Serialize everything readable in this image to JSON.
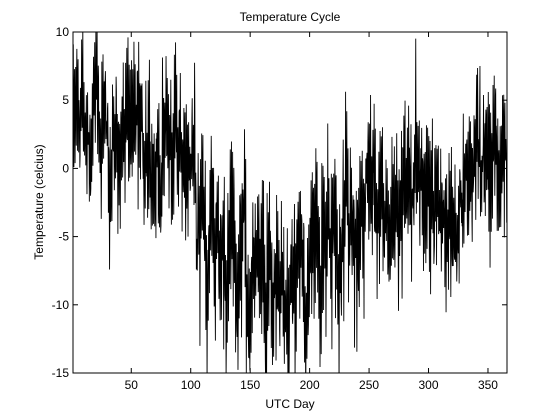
{
  "chart_data": {
    "type": "line",
    "title": "Temperature Cycle",
    "xlabel": "UTC Day",
    "ylabel": "Temperature (celcius)",
    "xlim": [
      1,
      366
    ],
    "ylim": [
      -15,
      10
    ],
    "xticks": [
      50,
      100,
      150,
      200,
      250,
      300,
      350
    ],
    "yticks": [
      -15,
      -10,
      -5,
      0,
      5,
      10
    ],
    "grid": false,
    "line_color": "#000000",
    "series": [
      {
        "samples_per_day": 4,
        "x_start": 1,
        "x_end": 366,
        "daily_mean": [
          [
            1,
            2.5
          ],
          [
            15,
            3.0
          ],
          [
            30,
            1.5
          ],
          [
            45,
            2.5
          ],
          [
            60,
            2.0
          ],
          [
            75,
            1.5
          ],
          [
            90,
            1.5
          ],
          [
            100,
            1.0
          ],
          [
            110,
            -4.0
          ],
          [
            120,
            -5.0
          ],
          [
            130,
            -6.5
          ],
          [
            140,
            -7.0
          ],
          [
            150,
            -8.0
          ],
          [
            160,
            -8.5
          ],
          [
            170,
            -9.0
          ],
          [
            180,
            -9.0
          ],
          [
            190,
            -8.5
          ],
          [
            200,
            -8.0
          ],
          [
            210,
            -7.5
          ],
          [
            220,
            -6.5
          ],
          [
            230,
            -6.0
          ],
          [
            240,
            -5.0
          ],
          [
            245,
            -2.5
          ],
          [
            260,
            -2.5
          ],
          [
            280,
            -1.5
          ],
          [
            300,
            -2.5
          ],
          [
            315,
            -4.0
          ],
          [
            330,
            -3.0
          ],
          [
            340,
            0.5
          ],
          [
            355,
            2.0
          ],
          [
            366,
            2.5
          ]
        ],
        "amplitude": [
          [
            1,
            7.0
          ],
          [
            100,
            7.0
          ],
          [
            110,
            8.0
          ],
          [
            240,
            8.5
          ],
          [
            250,
            7.5
          ],
          [
            366,
            7.0
          ]
        ]
      }
    ]
  }
}
